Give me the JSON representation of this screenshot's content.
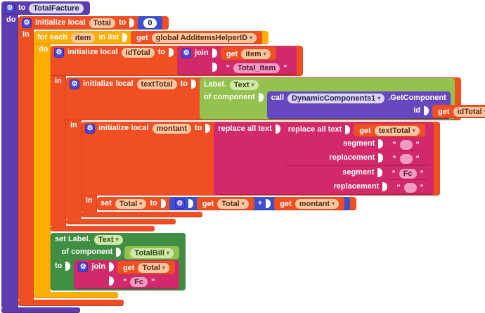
{
  "app": "blocks-editor",
  "icons": {
    "gear": "⚙",
    "dropdown": "▾"
  },
  "ui": {
    "quote": "\""
  },
  "colors": {
    "procedure_purple": "#5d3cae",
    "call_purple": "#6647c0",
    "variable_orange": "#ef4f23",
    "control_yellow": "#fcae03",
    "text_magenta": "#d2296b",
    "math_blue": "#3b50ce",
    "component_get_green": "#93c34e",
    "component_set_green": "#3f8e43",
    "canvas": "#ffffff"
  },
  "blocks": {
    "proc": {
      "to": "to",
      "name": "TotalFacture",
      "do": "do"
    },
    "init_total": {
      "kw": "initialize local",
      "name": "Total",
      "to": "to",
      "in": "in"
    },
    "zero": {
      "value": "0"
    },
    "foreach": {
      "kw1": "for each",
      "item": "item",
      "kw2": "in list",
      "do": "do"
    },
    "get_helper": {
      "kw": "get",
      "var": "global AdditemsHelperID"
    },
    "init_idtotal": {
      "kw": "initialize local",
      "name": "idTotal",
      "to": "to",
      "in": "in"
    },
    "join1": {
      "kw": "join"
    },
    "get_item": {
      "kw": "get",
      "var": "item"
    },
    "text_totalitem": {
      "value": "Total_Item"
    },
    "init_texttotal": {
      "kw": "initialize local",
      "name": "textTotal",
      "to": "to",
      "in": "in"
    },
    "label_text": {
      "kw": "Label.",
      "prop": "Text",
      "of": "of component"
    },
    "call_dc": {
      "kw": "call",
      "component": "DynamicComponents1",
      "method": ".GetComponent",
      "id": "id"
    },
    "get_idtotal": {
      "kw": "get",
      "var": "idTotal"
    },
    "init_montant": {
      "kw": "initialize local",
      "name": "montant",
      "to": "to",
      "in": "in"
    },
    "replace_outer": {
      "kw": "replace all text",
      "segment": "segment",
      "replacement": "replacement",
      "segment_text": "Fc",
      "replacement_text": ""
    },
    "replace_inner": {
      "kw": "replace all text",
      "segment": "segment",
      "replacement": "replacement",
      "segment_text": " ",
      "replacement_text": ""
    },
    "get_texttotal": {
      "kw": "get",
      "var": "textTotal"
    },
    "set_total": {
      "set": "set",
      "var": "Total",
      "to": "to"
    },
    "plus": {
      "op": "+"
    },
    "get_total": {
      "kw": "get",
      "var": "Total"
    },
    "get_montant": {
      "kw": "get",
      "var": "montant"
    },
    "set_label": {
      "kw": "set Label.",
      "prop": "Text",
      "of": "of component",
      "to": "to"
    },
    "comp_totalbill": {
      "name": "TotalBill"
    },
    "join2": {
      "kw": "join"
    },
    "get_total2": {
      "kw": "get",
      "var": "Total"
    },
    "text_fc": {
      "value": "Fc"
    }
  }
}
